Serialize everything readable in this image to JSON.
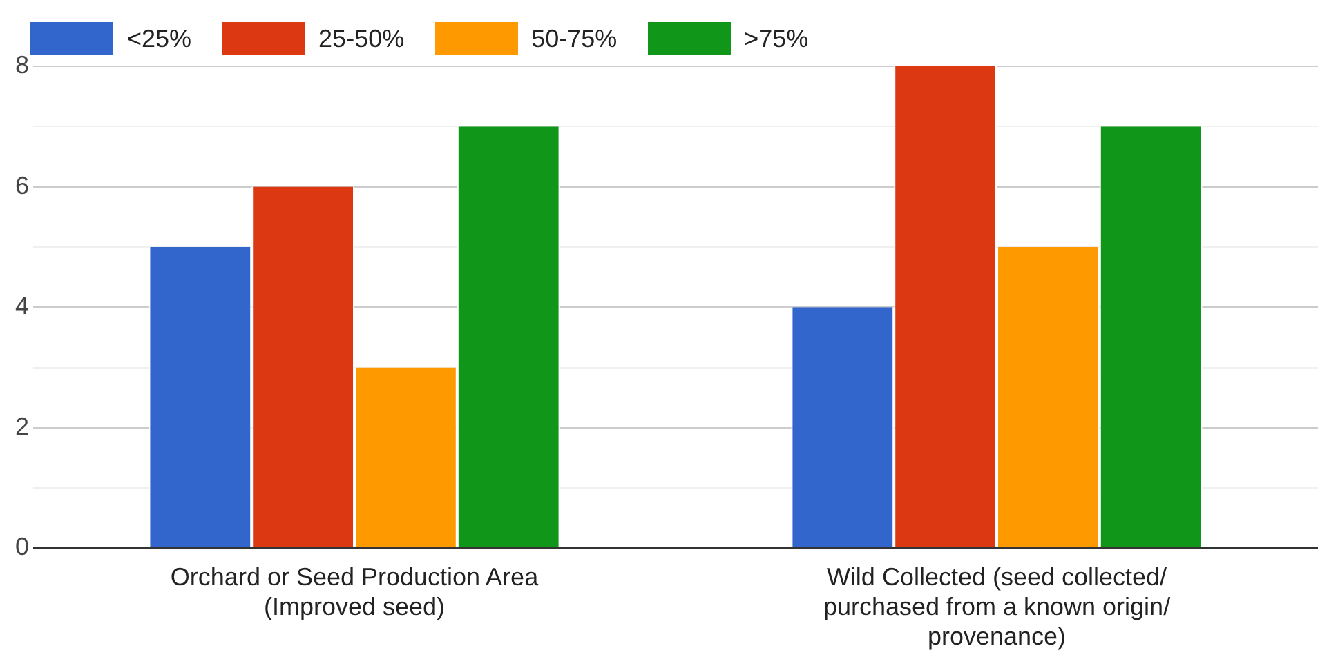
{
  "chart_data": {
    "type": "bar",
    "categories": [
      "Orchard or Seed Production Area (Improved seed)",
      "Wild Collected (seed collected/ purchased from a known origin/ provenance)"
    ],
    "series": [
      {
        "name": "<25%",
        "color": "#3366cc",
        "values": [
          5,
          4
        ]
      },
      {
        "name": "25-50%",
        "color": "#dc3912",
        "values": [
          6,
          8
        ]
      },
      {
        "name": "50-75%",
        "color": "#ff9900",
        "values": [
          3,
          5
        ]
      },
      {
        "name": ">75%",
        "color": "#109618",
        "values": [
          7,
          7
        ]
      }
    ],
    "ylim": [
      0,
      8
    ],
    "yticks": [
      0,
      {
        "value": 1,
        "label": null
      },
      2,
      {
        "value": 3,
        "label": null
      },
      4,
      {
        "value": 5,
        "label": null
      },
      6,
      {
        "value": 7,
        "label": null
      },
      8
    ],
    "grid": "y",
    "legend": "top left"
  }
}
